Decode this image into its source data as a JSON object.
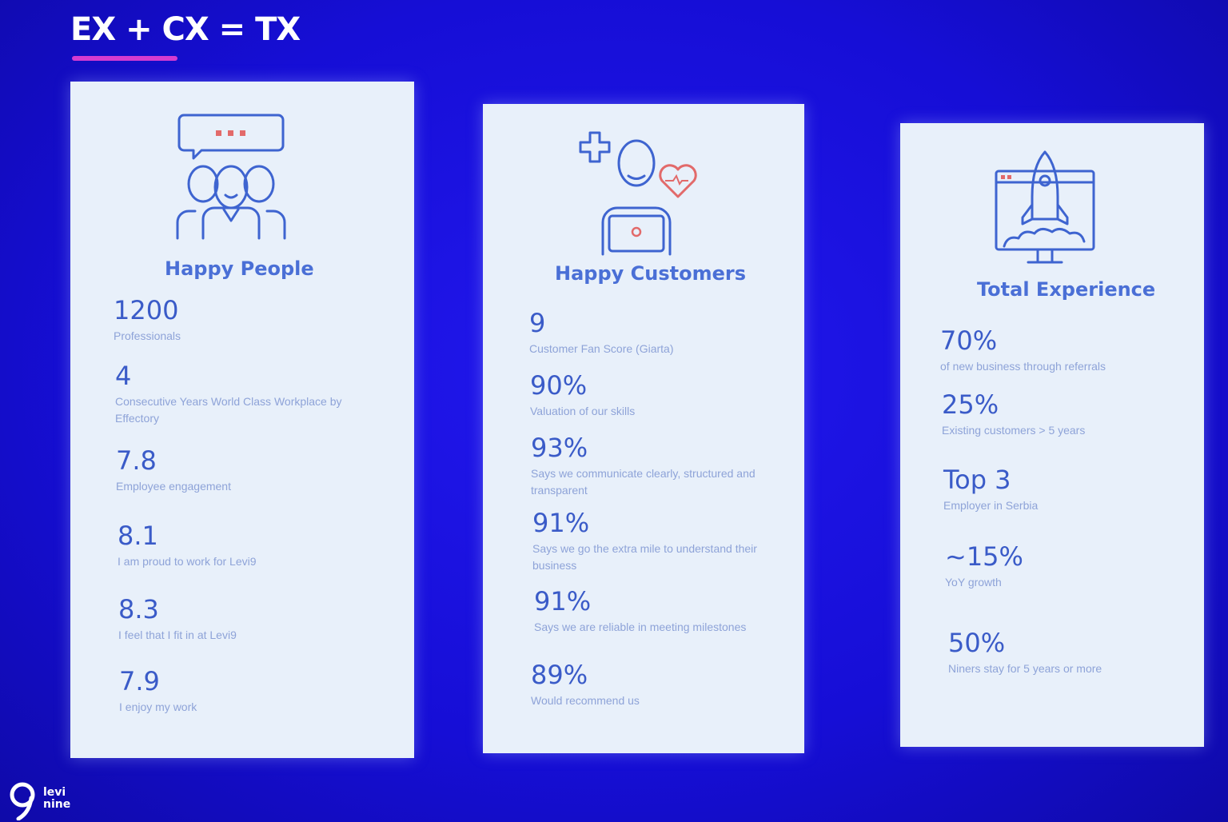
{
  "slide": {
    "title": "EX + CX = TX"
  },
  "brand": {
    "logo_line1": "levi",
    "logo_line2": "nine"
  },
  "cards": {
    "people": {
      "heading": "Happy People",
      "icon": "team-chat-icon",
      "stats": [
        {
          "value": "1200",
          "label": "Professionals"
        },
        {
          "value": "4",
          "label": "Consecutive Years World Class Workplace by Effectory"
        },
        {
          "value": "7.8",
          "label": "Employee engagement"
        },
        {
          "value": "8.1",
          "label": "I am proud to work for Levi9"
        },
        {
          "value": "8.3",
          "label": "I feel that I fit in at Levi9"
        },
        {
          "value": "7.9",
          "label": "I enjoy my work"
        }
      ]
    },
    "customers": {
      "heading": "Happy Customers",
      "icon": "customer-laptop-heart-icon",
      "stats": [
        {
          "value": "9",
          "label": "Customer Fan Score (Giarta)"
        },
        {
          "value": "90%",
          "label": "Valuation of our skills"
        },
        {
          "value": "93%",
          "label": "Says we communicate clearly, structured and transparent"
        },
        {
          "value": "91%",
          "label": "Says we go the extra mile to understand their business"
        },
        {
          "value": "91%",
          "label": "Says we are reliable in meeting milestones"
        },
        {
          "value": "89%",
          "label": "Would recommend us"
        }
      ]
    },
    "total": {
      "heading": "Total Experience",
      "icon": "rocket-launch-icon",
      "stats": [
        {
          "value": "70%",
          "label": "of new business through referrals"
        },
        {
          "value": "25%",
          "label": "Existing customers > 5 years"
        },
        {
          "value": "Top 3",
          "label": "Employer in Serbia"
        },
        {
          "value": "~15%",
          "label": "YoY growth"
        },
        {
          "value": "50%",
          "label": "Niners stay for 5 years or more"
        }
      ]
    }
  },
  "colors": {
    "background": "#1a10e0",
    "card": "#e8f0fa",
    "accent": "#3a5bc8",
    "underline": "#d63bd0"
  }
}
